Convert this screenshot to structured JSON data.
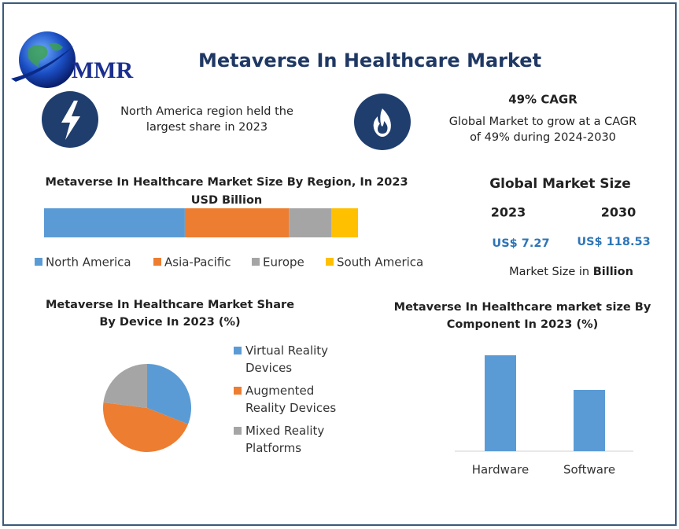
{
  "header": {
    "logo": "MMR",
    "title": "Metaverse In Healthcare Market"
  },
  "highlights": [
    {
      "text_lines": [
        "North America region held the",
        "largest share in 2023"
      ]
    },
    {
      "title": "49% CAGR",
      "text_lines": [
        "Global Market to grow at a CAGR",
        "of 49% during 2024-2030"
      ]
    }
  ],
  "market_size": {
    "title": "Global Market Size",
    "years": [
      "2023",
      "2030"
    ],
    "values": [
      "US$ 7.27",
      "US$ 118.53"
    ],
    "note_prefix": "Market Size in ",
    "note_bold": "Billion"
  },
  "chart_data": [
    {
      "type": "stacked_bar",
      "title_lines": [
        "Metaverse In Healthcare Market Size By Region, In 2023",
        "USD Billion"
      ],
      "series": [
        {
          "name": "North America",
          "color": "#5b9bd5",
          "values": [
            3.26
          ]
        },
        {
          "name": "Asia-Pacific",
          "color": "#ed7d31",
          "values": [
            2.41
          ]
        },
        {
          "name": "Europe",
          "color": "#a5a5a5",
          "values": [
            0.98
          ]
        },
        {
          "name": "South America",
          "color": "#ffc000",
          "values": [
            0.62
          ]
        }
      ]
    },
    {
      "type": "pie",
      "title_lines": [
        "Metaverse In Healthcare Market Share",
        "By Device In 2023 (%)"
      ],
      "labels": [
        "Virtual Reality Devices",
        "Augmented Reality Devices",
        "Mixed Reality Platforms"
      ],
      "values": [
        31,
        46,
        23
      ],
      "colors": [
        "#5b9bd5",
        "#ed7d31",
        "#a5a5a5"
      ]
    },
    {
      "type": "bar",
      "title_lines": [
        "Metaverse In Healthcare market size By",
        "Component In 2023 (%)"
      ],
      "categories": [
        "Hardware",
        "Software"
      ],
      "values": [
        61,
        39
      ],
      "color": "#5b9bd5"
    }
  ]
}
